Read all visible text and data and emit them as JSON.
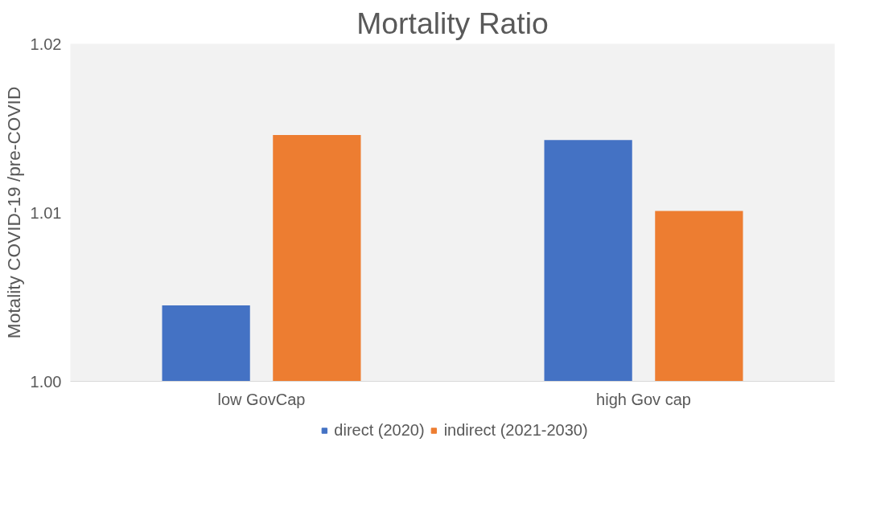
{
  "chart_data": {
    "type": "bar",
    "title": "Mortality Ratio",
    "ylabel": "Motality COVID-19 /pre-COVID",
    "categories": [
      "low GovCap",
      "high Gov cap"
    ],
    "series": [
      {
        "name": "direct (2020)",
        "color": "#4472c4",
        "values": [
          1.0045,
          1.0143
        ]
      },
      {
        "name": "indirect (2021-2030)",
        "color": "#ed7d31",
        "values": [
          1.0146,
          1.0101
        ]
      }
    ],
    "ylim": [
      1.0,
      1.02
    ],
    "yticks": [
      {
        "value": 1.0,
        "label": "1.00"
      },
      {
        "value": 1.01,
        "label": "1.01"
      },
      {
        "value": 1.02,
        "label": "1.02"
      }
    ],
    "grid": false,
    "legend": "bottom"
  }
}
